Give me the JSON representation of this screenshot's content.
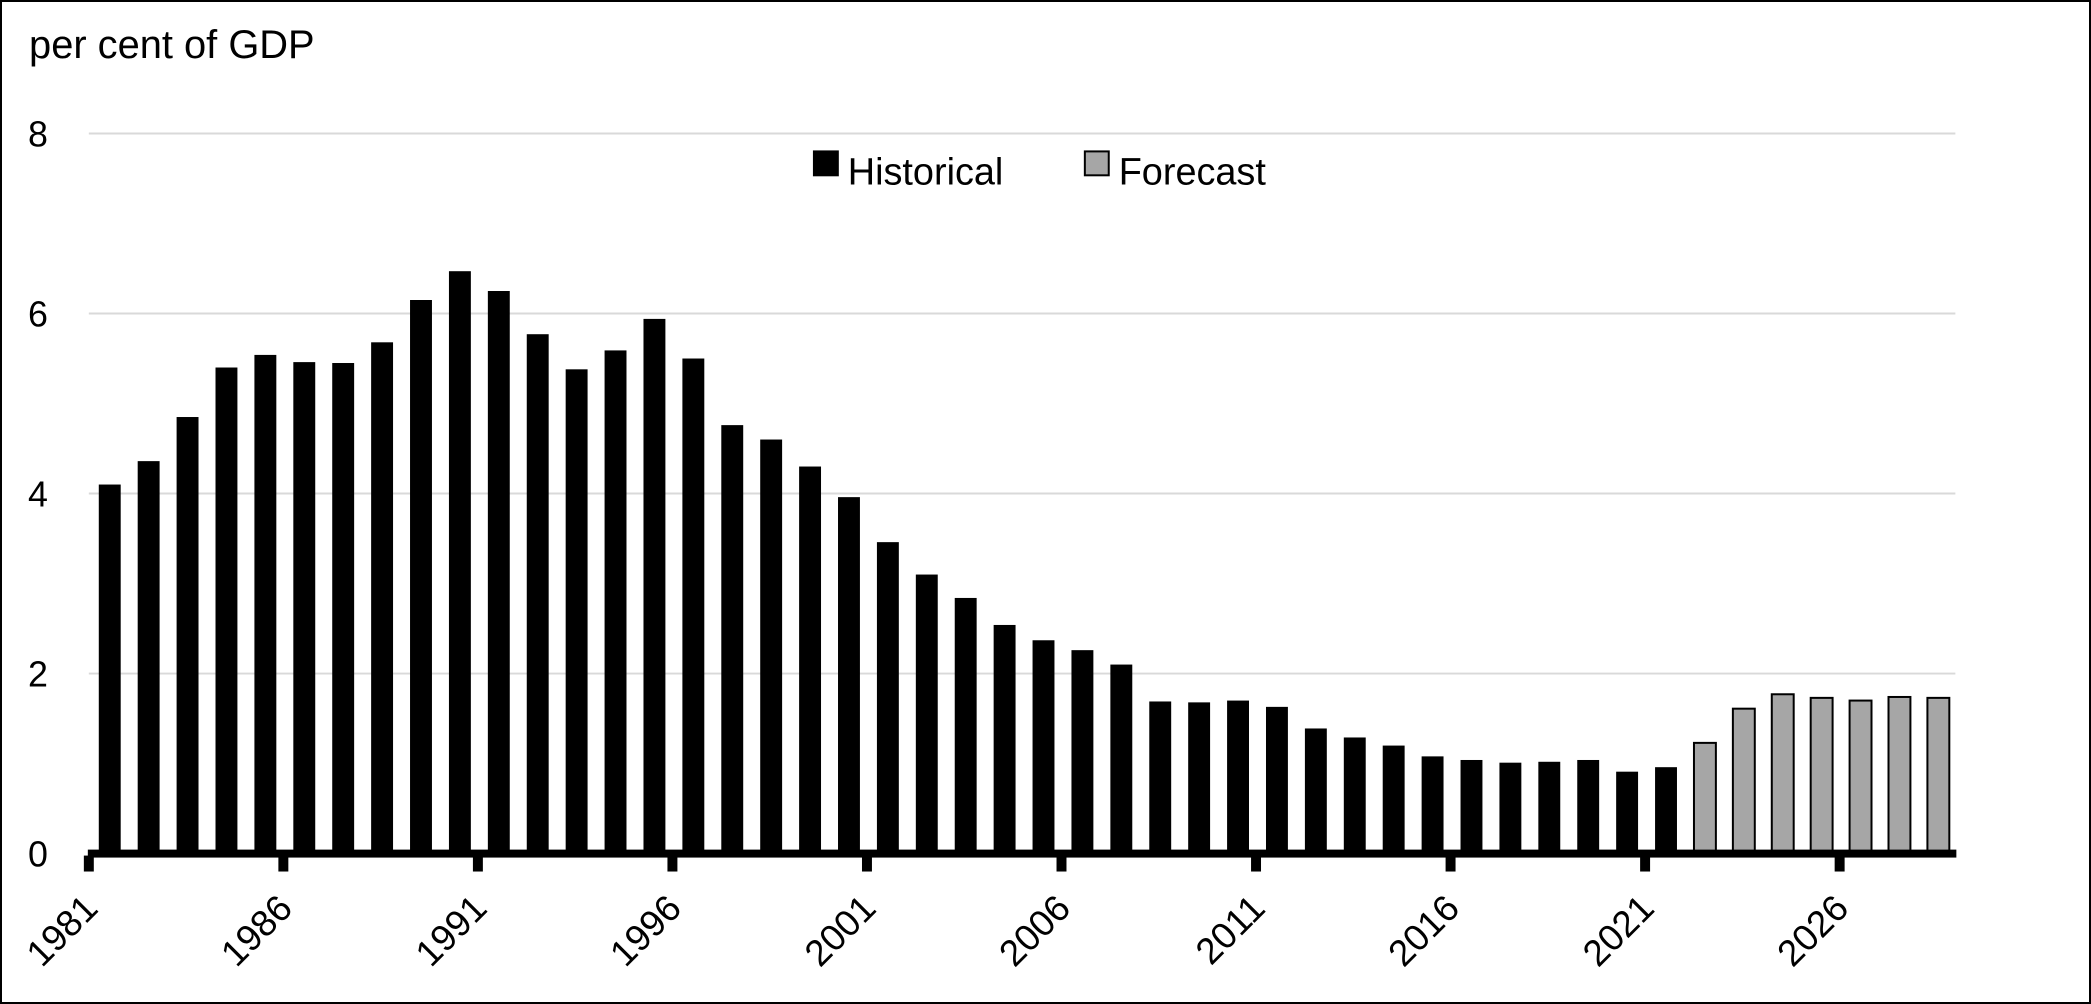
{
  "title": {
    "unit_label": "per cent of GDP"
  },
  "legend": {
    "items": [
      {
        "label": "Historical",
        "fill": "#000000",
        "border": "#000000"
      },
      {
        "label": "Forecast",
        "fill": "#A6A6A6",
        "border": "#000000"
      }
    ]
  },
  "axes": {
    "y_tick_labels": [
      "0",
      "2",
      "4",
      "6",
      "8"
    ],
    "y_tick_values": [
      0,
      2,
      4,
      6,
      8
    ],
    "x_tick_labels": [
      "1981",
      "1986",
      "1991",
      "1996",
      "2001",
      "2006",
      "2011",
      "2016",
      "2021",
      "2026"
    ]
  },
  "colors": {
    "historical": "#000000",
    "forecast_fill": "#A6A6A6",
    "forecast_border": "#000000",
    "gridline": "#D9D9D9",
    "axis": "#000000"
  },
  "chart_data": {
    "type": "bar",
    "title": "",
    "ylabel": "per cent of GDP",
    "xlabel": "",
    "ylim": [
      0,
      8
    ],
    "gridlines": [
      2,
      4,
      6,
      8
    ],
    "grid": true,
    "legend_position": "top-center",
    "x_tick_interval": 5,
    "series": [
      {
        "name": "Historical",
        "color": "#000000",
        "years": [
          1981,
          1982,
          1983,
          1984,
          1985,
          1986,
          1987,
          1988,
          1989,
          1990,
          1991,
          1992,
          1993,
          1994,
          1995,
          1996,
          1997,
          1998,
          1999,
          2000,
          2001,
          2002,
          2003,
          2004,
          2005,
          2006,
          2007,
          2008,
          2009,
          2010,
          2011,
          2012,
          2013,
          2014,
          2015,
          2016,
          2017,
          2018,
          2019,
          2020,
          2021
        ],
        "values": [
          4.1,
          4.36,
          4.85,
          5.4,
          5.54,
          5.46,
          5.45,
          5.68,
          6.15,
          6.47,
          6.25,
          5.77,
          5.38,
          5.59,
          5.94,
          5.5,
          4.76,
          4.6,
          4.3,
          3.96,
          3.46,
          3.1,
          2.84,
          2.54,
          2.37,
          2.26,
          2.1,
          1.69,
          1.68,
          1.7,
          1.63,
          1.39,
          1.29,
          1.2,
          1.08,
          1.04,
          1.01,
          1.02,
          1.04,
          0.91,
          0.96
        ]
      },
      {
        "name": "Forecast",
        "color": "#A6A6A6",
        "years": [
          2022,
          2023,
          2024,
          2025,
          2026,
          2027,
          2028
        ],
        "values": [
          1.23,
          1.61,
          1.77,
          1.73,
          1.7,
          1.74,
          1.73
        ]
      }
    ]
  }
}
